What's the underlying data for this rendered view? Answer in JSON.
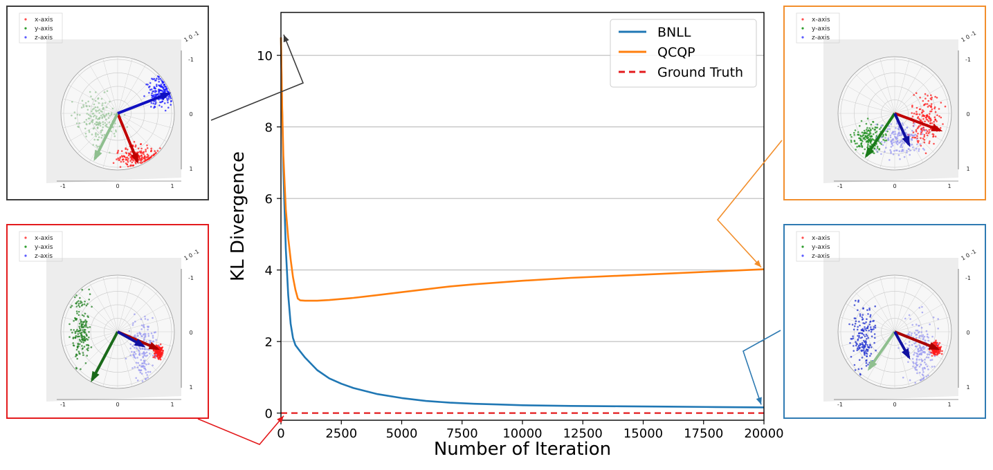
{
  "chart_data": {
    "type": "line",
    "xlabel": "Number of Iteration",
    "ylabel": "KL Divergence",
    "xlim": [
      0,
      20000
    ],
    "ylim": [
      -0.2,
      11.2
    ],
    "x_ticks": [
      0,
      2500,
      5000,
      7500,
      10000,
      12500,
      15000,
      17500,
      20000
    ],
    "x_tick_labels": [
      "0",
      "2500",
      "5000",
      "7500",
      "10000",
      "12500",
      "15000",
      "17500",
      "20000"
    ],
    "y_ticks": [
      0,
      2,
      4,
      6,
      8,
      10
    ],
    "y_tick_labels": [
      "0",
      "2",
      "4",
      "6",
      "8",
      "10"
    ],
    "grid": "horizontal",
    "legend_position": "top-right",
    "series": [
      {
        "name": "BNLL",
        "color": "#1f77b4",
        "style": "solid",
        "x": [
          0,
          50,
          100,
          200,
          300,
          400,
          500,
          600,
          800,
          1000,
          1500,
          2000,
          2500,
          3000,
          4000,
          5000,
          6000,
          7000,
          8000,
          9000,
          10000,
          12000,
          14000,
          16000,
          18000,
          20000
        ],
        "y": [
          10.5,
          8.5,
          6.8,
          4.6,
          3.3,
          2.5,
          2.1,
          1.9,
          1.72,
          1.55,
          1.2,
          0.97,
          0.82,
          0.7,
          0.53,
          0.42,
          0.34,
          0.29,
          0.26,
          0.24,
          0.22,
          0.2,
          0.19,
          0.18,
          0.17,
          0.16
        ]
      },
      {
        "name": "QCQP",
        "color": "#ff7f0e",
        "style": "solid",
        "x": [
          0,
          50,
          100,
          200,
          300,
          400,
          500,
          600,
          700,
          800,
          1000,
          1500,
          2000,
          3000,
          4000,
          5000,
          6000,
          7000,
          8000,
          10000,
          12000,
          14000,
          16000,
          18000,
          20000
        ],
        "y": [
          10.5,
          8.6,
          7.2,
          5.7,
          4.9,
          4.3,
          3.8,
          3.45,
          3.2,
          3.15,
          3.14,
          3.14,
          3.16,
          3.22,
          3.3,
          3.38,
          3.46,
          3.54,
          3.6,
          3.7,
          3.78,
          3.84,
          3.9,
          3.96,
          4.02
        ]
      },
      {
        "name": "Ground Truth",
        "color": "#e31a1c",
        "style": "dashed",
        "x": [
          0,
          20000
        ],
        "y": [
          0,
          0
        ]
      }
    ],
    "insets": [
      {
        "id": "start",
        "frame_color": "#3b3b3b",
        "points_to": {
          "x": 0,
          "y": 10.5
        },
        "legend": [
          "x-axis",
          "y-axis",
          "z-axis"
        ],
        "ticks_h": [
          "-1",
          "0",
          "1"
        ],
        "ticks_v": [
          "-1",
          "0",
          "1"
        ],
        "corner_label": "1 0 -1"
      },
      {
        "id": "qcqp-end",
        "frame_color": "#f28e2b",
        "points_to": {
          "x": 20000,
          "y": 4.0
        },
        "legend": [
          "x-axis",
          "y-axis",
          "z-axis"
        ],
        "ticks_h": [
          "-1",
          "0",
          "1"
        ],
        "ticks_v": [
          "-1",
          "0",
          "1"
        ],
        "corner_label": "1 0 -1"
      },
      {
        "id": "truth",
        "frame_color": "#e31a1c",
        "points_to": {
          "x": 0,
          "y": 0
        },
        "legend": [
          "x-axis",
          "y-axis",
          "z-axis"
        ],
        "ticks_h": [
          "-1",
          "0",
          "1"
        ],
        "ticks_v": [
          "-1",
          "0",
          "1"
        ],
        "corner_label": "1 0 -1"
      },
      {
        "id": "bnll-end",
        "frame_color": "#2e7ab2",
        "points_to": {
          "x": 20000,
          "y": 0.16
        },
        "legend": [
          "x-axis",
          "y-axis",
          "z-axis"
        ],
        "ticks_h": [
          "-1",
          "0",
          "1"
        ],
        "ticks_v": [
          "-1",
          "0",
          "1"
        ],
        "corner_label": "1 0 -1"
      }
    ]
  }
}
